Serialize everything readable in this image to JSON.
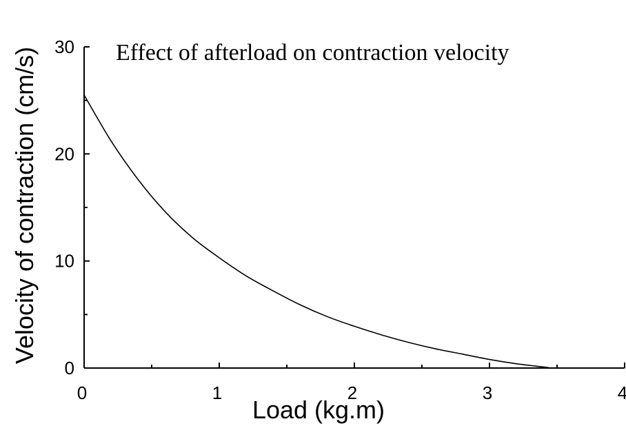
{
  "chart_data": {
    "type": "line",
    "title": "Effect of afterload on contraction velocity",
    "xlabel": "Load (kg.m)",
    "ylabel": "Velocity of contraction (cm/s)",
    "xlim": [
      0,
      4
    ],
    "ylim": [
      0,
      30
    ],
    "x_ticks": [
      "0",
      "1",
      "2",
      "3",
      "4"
    ],
    "y_ticks": [
      "0",
      "10",
      "20",
      "30"
    ],
    "grid": false,
    "series": [
      {
        "color": "#000000",
        "x": [
          0,
          0.2,
          0.4,
          0.6,
          0.8,
          1.0,
          1.2,
          1.4,
          1.6,
          1.8,
          2.0,
          2.2,
          2.4,
          2.6,
          2.8,
          3.0,
          3.2,
          3.4,
          3.45
        ],
        "y": [
          25.5,
          21.2,
          17.6,
          14.6,
          12.2,
          10.3,
          8.6,
          7.2,
          5.9,
          4.8,
          3.9,
          3.1,
          2.4,
          1.8,
          1.3,
          0.8,
          0.4,
          0.1,
          0
        ]
      }
    ]
  }
}
